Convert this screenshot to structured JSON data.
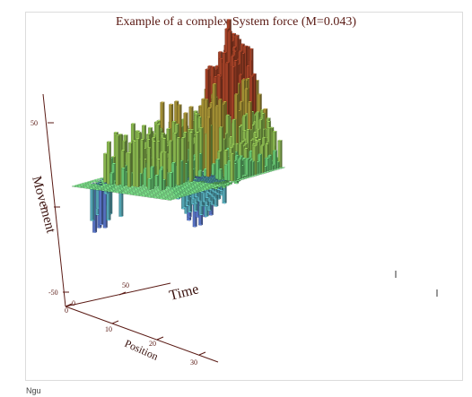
{
  "caption": "Ngu",
  "chart_data": {
    "type": "surface3d",
    "title": "Example of a complex System force (M=0.043)",
    "xlabel": "Position",
    "ylabel": "Time",
    "zlabel": "Movement",
    "grid": false,
    "x_ticks": [
      "0",
      "10",
      "20",
      "30"
    ],
    "y_ticks": [
      "0",
      "50"
    ],
    "z_ticks": [
      "-50",
      "0",
      "50"
    ],
    "x_range": [
      0,
      34
    ],
    "y_range": [
      0,
      100
    ],
    "z_range": [
      -60,
      70
    ],
    "colormap": [
      "#3a3adc",
      "#6a8cf0",
      "#66ccdd",
      "#7cf08a",
      "#a8e060",
      "#c8b040",
      "#c85030"
    ]
  }
}
